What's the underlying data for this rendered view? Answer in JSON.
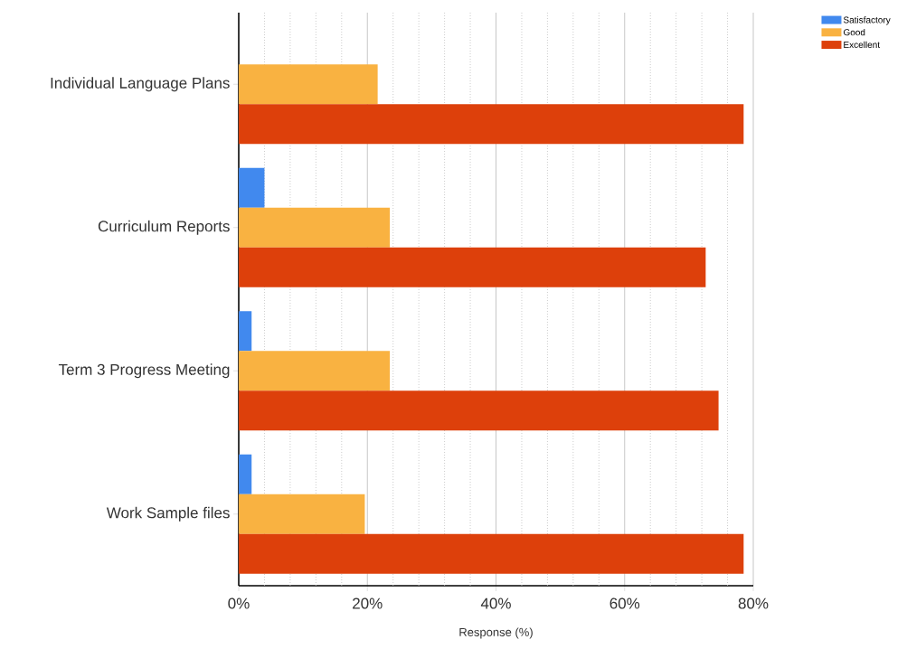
{
  "chart_data": {
    "type": "bar",
    "orientation": "horizontal",
    "xlabel": "Response (%)",
    "categories": [
      "Individual Language Plans",
      "Curriculum Reports",
      "Term 3 Progress Meeting",
      "Work Sample files"
    ],
    "series": [
      {
        "name": "Satisfactory",
        "color": "#4189ee",
        "values": [
          0,
          4.0,
          2.0,
          2.0
        ]
      },
      {
        "name": "Good",
        "color": "#f9b241",
        "values": [
          21.6,
          23.5,
          23.5,
          19.6
        ]
      },
      {
        "name": "Excellent",
        "color": "#dd400b",
        "values": [
          78.5,
          72.6,
          74.6,
          78.5
        ]
      }
    ],
    "xlim": [
      0,
      80
    ],
    "xticks": [
      {
        "value": 0,
        "label": "0%"
      },
      {
        "value": 4,
        "label": null
      },
      {
        "value": 8,
        "label": null
      },
      {
        "value": 12,
        "label": null
      },
      {
        "value": 16,
        "label": null
      },
      {
        "value": 20,
        "label": "20%"
      },
      {
        "value": 24,
        "label": null
      },
      {
        "value": 28,
        "label": null
      },
      {
        "value": 32,
        "label": null
      },
      {
        "value": 36,
        "label": null
      },
      {
        "value": 40,
        "label": "40%"
      },
      {
        "value": 44,
        "label": null
      },
      {
        "value": 48,
        "label": null
      },
      {
        "value": 52,
        "label": null
      },
      {
        "value": 56,
        "label": null
      },
      {
        "value": 60,
        "label": "60%"
      },
      {
        "value": 64,
        "label": null
      },
      {
        "value": 68,
        "label": null
      },
      {
        "value": 72,
        "label": null
      },
      {
        "value": 76,
        "label": null
      },
      {
        "value": 80,
        "label": "80%"
      }
    ],
    "grid": "x",
    "legend": "top right"
  }
}
